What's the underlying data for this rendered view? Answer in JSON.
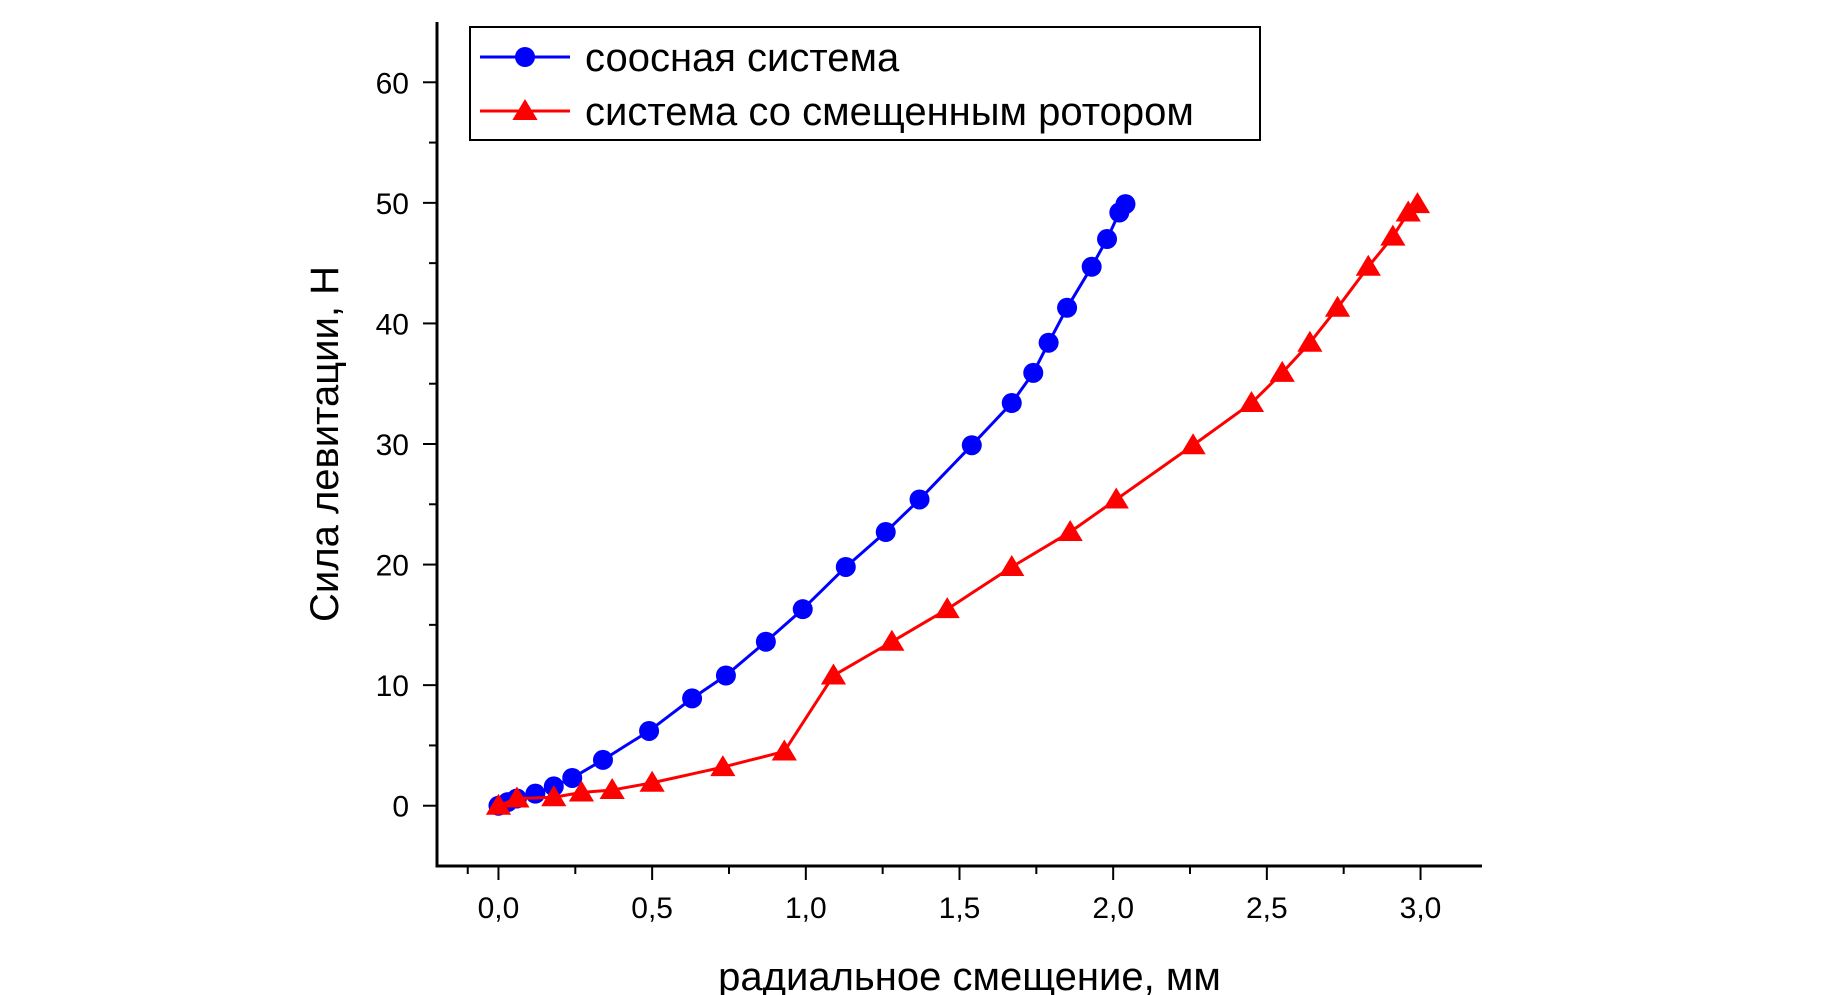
{
  "chart_data": {
    "type": "line",
    "xlabel": "радиальное смещение, мм",
    "ylabel": "Сила левитации, Н",
    "xlim": [
      -0.2,
      3.2
    ],
    "ylim": [
      -5,
      65
    ],
    "xticks": [
      0.0,
      0.5,
      1.0,
      1.5,
      2.0,
      2.5,
      3.0
    ],
    "xtick_labels": [
      "0,0",
      "0,5",
      "1,0",
      "1,5",
      "2,0",
      "2,5",
      "3,0"
    ],
    "yticks": [
      0,
      10,
      20,
      30,
      40,
      50,
      60
    ],
    "ytick_labels": [
      "0",
      "10",
      "20",
      "30",
      "40",
      "50",
      "60"
    ],
    "legend_position": "top-left",
    "series": [
      {
        "name": "соосная система",
        "color": "#0000ff",
        "marker": "circle",
        "x": [
          0.0,
          0.03,
          0.06,
          0.12,
          0.18,
          0.24,
          0.34,
          0.49,
          0.63,
          0.74,
          0.87,
          0.99,
          1.13,
          1.26,
          1.37,
          1.54,
          1.67,
          1.74,
          1.79,
          1.85,
          1.93,
          1.98,
          2.02,
          2.04
        ],
        "y": [
          0.0,
          0.3,
          0.6,
          1.0,
          1.6,
          2.3,
          3.8,
          6.2,
          8.9,
          10.8,
          13.6,
          16.3,
          19.8,
          22.7,
          25.4,
          29.9,
          33.4,
          35.9,
          38.4,
          41.3,
          44.7,
          47.0,
          49.2,
          49.9
        ]
      },
      {
        "name": "система со смещенным ротором",
        "color": "#ff0000",
        "marker": "triangle",
        "x": [
          0.0,
          0.06,
          0.18,
          0.27,
          0.37,
          0.5,
          0.73,
          0.93,
          1.09,
          1.28,
          1.46,
          1.67,
          1.86,
          2.01,
          2.26,
          2.45,
          2.55,
          2.64,
          2.73,
          2.83,
          2.91,
          2.96,
          2.99
        ],
        "y": [
          0.0,
          0.6,
          0.7,
          1.1,
          1.3,
          1.9,
          3.2,
          4.5,
          10.8,
          13.6,
          16.3,
          19.8,
          22.7,
          25.4,
          29.9,
          33.4,
          35.9,
          38.4,
          41.3,
          44.7,
          47.2,
          49.2,
          49.9
        ]
      }
    ]
  }
}
